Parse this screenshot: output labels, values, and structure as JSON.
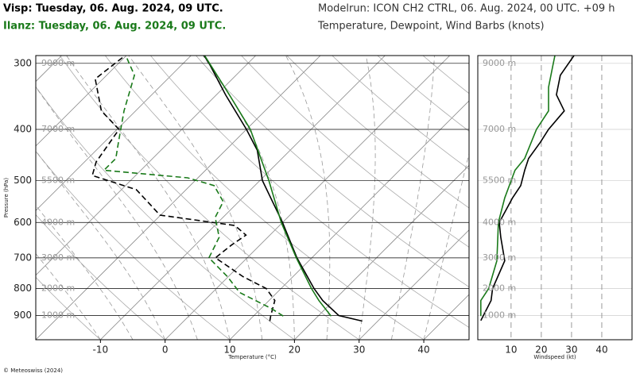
{
  "header": {
    "station1": "Visp: Tuesday, 06. Aug. 2024, 09 UTC.",
    "station1_color": "#000000",
    "station2": "Ilanz: Tuesday, 06. Aug. 2024, 09 UTC.",
    "station2_color": "#1a7a1a",
    "modelrun": "Modelrun: ICON CH2 CTRL, 06. Aug. 2024, 00 UTC. +09 h",
    "subtitle": "Temperature, Dewpoint, Wind Barbs (knots)"
  },
  "footer": "© Meteoswiss (2024)",
  "chart_data": [
    {
      "type": "skewt",
      "xlabel": "Temperature (°C)",
      "ylabel": "Pressure (hPa)",
      "log_y": true,
      "xlim": [
        -20,
        47
      ],
      "xticks": [
        -10,
        0,
        10,
        20,
        30,
        40
      ],
      "ylim": [
        1000,
        290
      ],
      "yticks": [
        300,
        400,
        500,
        600,
        700,
        800,
        900
      ],
      "height_labels": [
        "9000 m",
        "7000 m",
        "5500 m",
        "4000 m",
        "3000 m",
        "2000 m",
        "1000 m"
      ],
      "series": [
        {
          "color": "#000000",
          "style": "solid",
          "pressure": [
            922,
            900,
            843,
            800,
            700,
            600,
            500,
            438,
            400,
            344,
            300,
            290
          ],
          "values": [
            27.6,
            23.1,
            18.3,
            15.1,
            7.7,
            0.0,
            -9.6,
            -15.1,
            -20.0,
            -28.6,
            -36.0,
            -38.0
          ]
        },
        {
          "color": "#000000",
          "style": "dashed",
          "pressure": [
            922,
            900,
            843,
            800,
            760,
            700,
            662,
            634,
            608,
            581,
            561,
            520,
            489,
            461,
            400,
            369,
            321,
            290
          ],
          "values": [
            13.3,
            12.6,
            10.9,
            7.7,
            2.3,
            -4.9,
            -4.4,
            -3.7,
            -6.9,
            -20.1,
            -22.5,
            -27.7,
            -36.7,
            -38.2,
            -39.7,
            -45.3,
            -51.2,
            -50.2
          ]
        },
        {
          "color": "#1a7a1a",
          "style": "solid",
          "pressure": [
            902,
            843,
            800,
            700,
            600,
            500,
            400,
            344,
            290
          ],
          "values": [
            22.0,
            17.7,
            14.7,
            7.6,
            -0.2,
            -8.6,
            -19.4,
            -28.0,
            -37.9
          ]
        },
        {
          "color": "#1a7a1a",
          "style": "dashed",
          "pressure": [
            902,
            872,
            814,
            760,
            700,
            640,
            587,
            548,
            511,
            494,
            478,
            454,
            423,
            369,
            316,
            290
          ],
          "values": [
            14.6,
            11.5,
            4.2,
            -0.1,
            -5.9,
            -7.5,
            -11.2,
            -12.4,
            -16.3,
            -21.6,
            -35.7,
            -35.7,
            -37.8,
            -41.8,
            -45.7,
            -50.1
          ]
        }
      ]
    },
    {
      "type": "line",
      "xlabel": "Windspeed (kt)",
      "log_y": true,
      "xlim": [
        -1,
        50
      ],
      "xticks": [
        10,
        20,
        30,
        40
      ],
      "ylim": [
        1000,
        290
      ],
      "yticks": [
        300,
        400,
        500,
        600,
        700,
        800,
        900
      ],
      "series": [
        {
          "color": "#000000",
          "pressure": [
            920,
            843,
            800,
            709,
            640,
            600,
            539,
            511,
            478,
            454,
            423,
            400,
            369,
            344,
            316,
            290
          ],
          "values": [
            0,
            3.4,
            3.9,
            7.9,
            6.6,
            6.1,
            10.5,
            13.2,
            14.5,
            15.8,
            19.7,
            22.4,
            27.6,
            25,
            26.3,
            30.8
          ]
        },
        {
          "color": "#1a7a1a",
          "pressure": [
            902,
            843,
            800,
            709,
            600,
            539,
            478,
            454,
            400,
            369,
            333,
            305,
            290
          ],
          "values": [
            0,
            0,
            2.6,
            5.3,
            5.8,
            7.9,
            11.3,
            14.5,
            18.4,
            22.4,
            22.4,
            23.7,
            24.5
          ]
        }
      ]
    }
  ]
}
